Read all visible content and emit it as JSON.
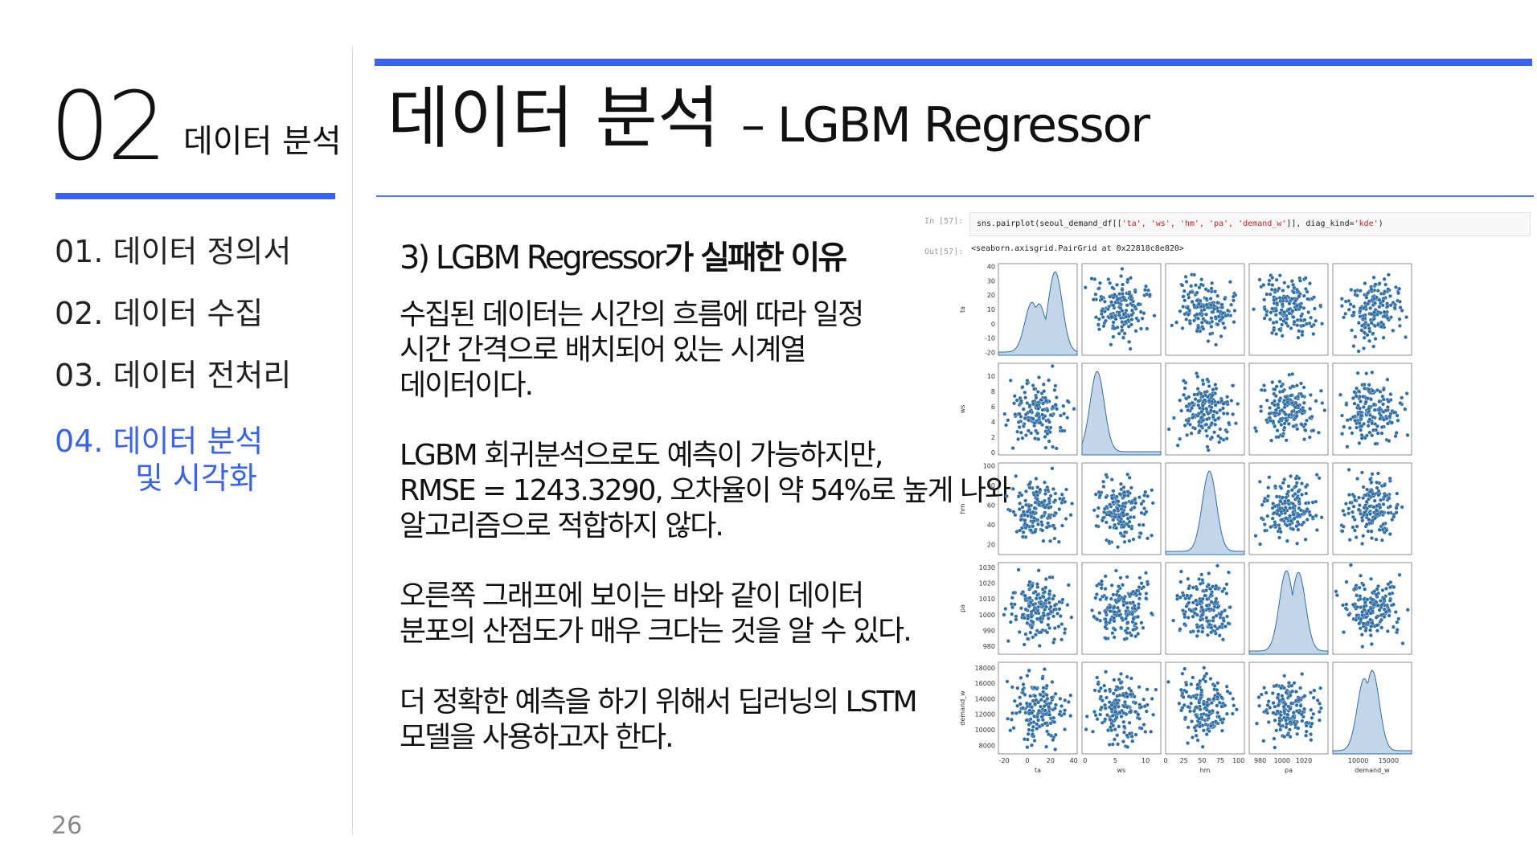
{
  "left": {
    "section_number": "02",
    "section_name": "데이터 분석",
    "toc": [
      {
        "label": "01. 데이터 정의서"
      },
      {
        "label": "02. 데이터 수집"
      },
      {
        "label": "03. 데이터 전처리"
      },
      {
        "label_line1": "04. 데이터 분석",
        "label_line2": "및 시각화"
      }
    ],
    "page_number": "26"
  },
  "main": {
    "title_ko": "데이터 분석",
    "title_en": "– LGBM Regressor",
    "subheading_prefix": "3) LGBM Regressor",
    "subheading_bold": "가 실패한 이유",
    "paragraphs": [
      [
        "수집된 데이터는 시간의 흐름에 따라 일정",
        "시간 간격으로 배치되어 있는 시계열",
        "데이터이다."
      ],
      [
        "LGBM 회귀분석으로도 예측이 가능하지만,",
        "RMSE = 1243.3290, 오차율이 약 54%로 높게 나와",
        "알고리즘으로 적합하지 않다."
      ],
      [
        "오른쪽 그래프에 보이는 바와 같이 데이터",
        "분포의 산점도가 매우 크다는 것을 알 수 있다."
      ],
      [
        "더 정확한 예측을 하기 위해서 딥러닝의 LSTM",
        "모델을 사용하고자 한다."
      ]
    ]
  },
  "notebook": {
    "in_label": "In [57]:",
    "out_label": "Out[57]:",
    "code_prefix": "sns.pairplot(seoul_demand_df[[",
    "code_args": "'ta', 'ws', 'hm', 'pa', 'demand_w'",
    "code_suffix": "]], diag_kind=",
    "code_kind": "'kde'",
    "code_end": ")",
    "output_text": "<seaborn.axisgrid.PairGrid at 0x22818c8e820>"
  },
  "chart_data": {
    "type": "scatter",
    "subtype": "pairplot",
    "diag_kind": "kde",
    "color": "#2f6ea5",
    "fill_color": "#a9c5e0",
    "variables": [
      "ta",
      "ws",
      "hm",
      "pa",
      "demand_w"
    ],
    "x_range": {
      "ta": [
        -25,
        43
      ],
      "ws": [
        -0.5,
        12.5
      ],
      "hm": [
        0,
        108
      ],
      "pa": [
        970,
        1042
      ],
      "demand_w": [
        5800,
        18800
      ]
    },
    "y_range": {
      "ta": [
        -22,
        42
      ],
      "ws": [
        -0.3,
        11.7
      ],
      "hm": [
        10,
        103
      ],
      "pa": [
        975,
        1033
      ],
      "demand_w": [
        6900,
        18700
      ]
    },
    "x_ticks": {
      "ta": [
        -20,
        0,
        20,
        40
      ],
      "ws": [
        0,
        5,
        10
      ],
      "hm": [
        0,
        25,
        50,
        75,
        100
      ],
      "pa": [
        980,
        1000,
        1020
      ],
      "demand_w": [
        10000,
        15000
      ]
    },
    "y_ticks": {
      "ta": [
        -20,
        -10,
        0,
        10,
        20,
        30,
        40
      ],
      "ws": [
        0,
        2,
        4,
        6,
        8,
        10
      ],
      "hm": [
        20,
        40,
        60,
        80,
        100
      ],
      "pa": [
        980,
        990,
        1000,
        1010,
        1020,
        1030
      ],
      "demand_w": [
        8000,
        10000,
        12000,
        14000,
        16000,
        18000
      ]
    },
    "kde_peaks": {
      "ta": [
        [
          4,
          0.62
        ],
        [
          10,
          0.6
        ],
        [
          24,
          1.0
        ]
      ],
      "ws": [
        [
          2.0,
          1.0
        ]
      ],
      "hm": [
        [
          60,
          1.0
        ]
      ],
      "pa": [
        [
          1004,
          1.0
        ],
        [
          1015,
          0.98
        ]
      ],
      "demand_w": [
        [
          11000,
          0.9
        ],
        [
          12300,
          1.0
        ]
      ]
    }
  }
}
